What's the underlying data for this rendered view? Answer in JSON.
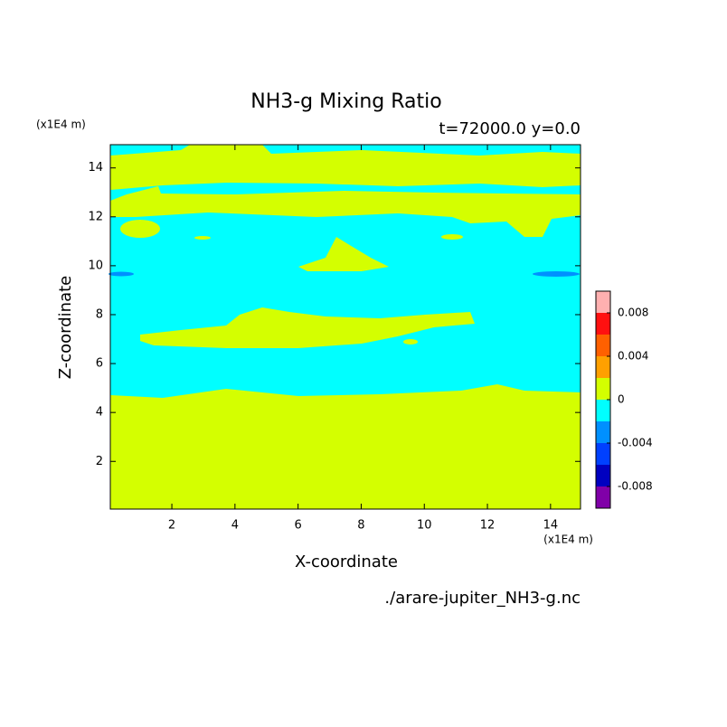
{
  "chart_data": {
    "type": "contour",
    "title": "NH3-g Mixing Ratio",
    "subtitle": "t=72000.0 y=0.0",
    "x_label": "X-coordinate",
    "y_label": "Z-coordinate",
    "x_unit": "(x1E4 m)",
    "y_unit": "(x1E4 m)",
    "footer": "./arare-jupiter_NH3-g.nc",
    "xlim": [
      0.05,
      14.95
    ],
    "ylim": [
      0.05,
      14.95
    ],
    "xticks": [
      2,
      4,
      6,
      8,
      10,
      12,
      14
    ],
    "yticks": [
      2,
      4,
      6,
      8,
      10,
      12,
      14
    ],
    "levels": [
      -0.01,
      -0.008,
      -0.006,
      -0.004,
      -0.002,
      0,
      0.002,
      0.004,
      0.006,
      0.008,
      0.01
    ],
    "colors": [
      "#8000a8",
      "#0000c0",
      "#0040ff",
      "#0090ff",
      "#00ffff",
      "#d4ff00",
      "#ffa000",
      "#ff6000",
      "#ff1010",
      "#ffb0b0"
    ],
    "colorbar_ticks": [
      -0.008,
      -0.004,
      0,
      0.004,
      0.008
    ]
  }
}
